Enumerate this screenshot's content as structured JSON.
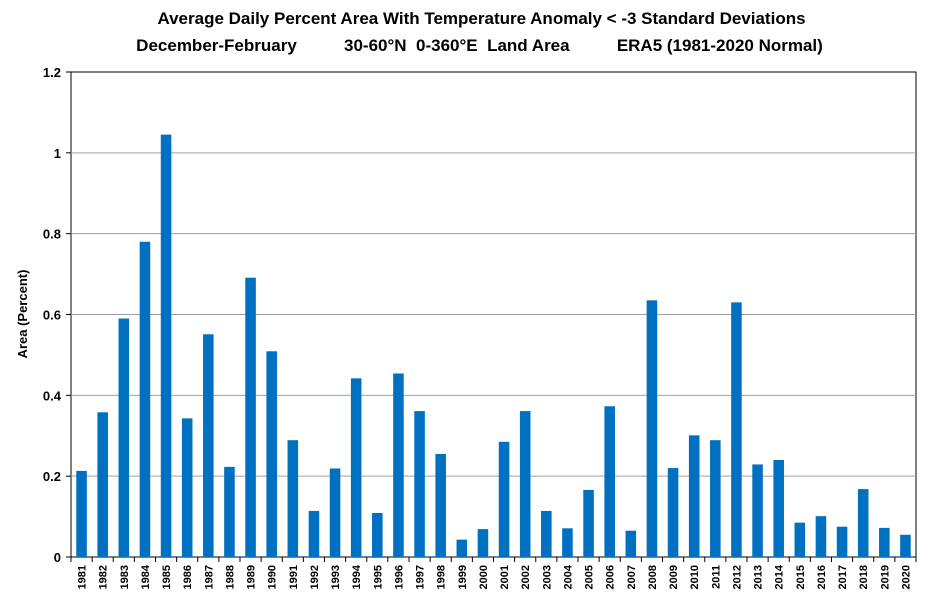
{
  "chart_data": {
    "type": "bar",
    "title": "Average Daily Percent Area With Temperature Anomaly < -3 Standard Deviations",
    "subtitle": "December-February          30-60°N  0-360°E  Land Area          ERA5 (1981-2020 Normal)",
    "xlabel": "",
    "ylabel": "Area (Percent)",
    "ylim": [
      0,
      1.2
    ],
    "yticks": [
      "0",
      "0.2",
      "0.4",
      "0.6",
      "0.8",
      "1",
      "1.2"
    ],
    "grid": true,
    "legend": "none",
    "bar_color": "#0070C0",
    "categories": [
      "1981",
      "1982",
      "1983",
      "1984",
      "1985",
      "1986",
      "1987",
      "1988",
      "1989",
      "1990",
      "1991",
      "1992",
      "1993",
      "1994",
      "1995",
      "1996",
      "1997",
      "1998",
      "1999",
      "2000",
      "2001",
      "2002",
      "2003",
      "2004",
      "2005",
      "2006",
      "2007",
      "2008",
      "2009",
      "2010",
      "2011",
      "2012",
      "2013",
      "2014",
      "2015",
      "2016",
      "2017",
      "2018",
      "2019",
      "2020"
    ],
    "values": [
      0.213,
      0.358,
      0.59,
      0.78,
      1.045,
      0.343,
      0.551,
      0.223,
      0.691,
      0.509,
      0.289,
      0.114,
      0.219,
      0.442,
      0.109,
      0.454,
      0.361,
      0.255,
      0.043,
      0.069,
      0.285,
      0.361,
      0.114,
      0.071,
      0.166,
      0.373,
      0.065,
      0.635,
      0.22,
      0.301,
      0.289,
      0.63,
      0.229,
      0.24,
      0.085,
      0.101,
      0.075,
      0.168,
      0.072,
      0.055
    ]
  }
}
